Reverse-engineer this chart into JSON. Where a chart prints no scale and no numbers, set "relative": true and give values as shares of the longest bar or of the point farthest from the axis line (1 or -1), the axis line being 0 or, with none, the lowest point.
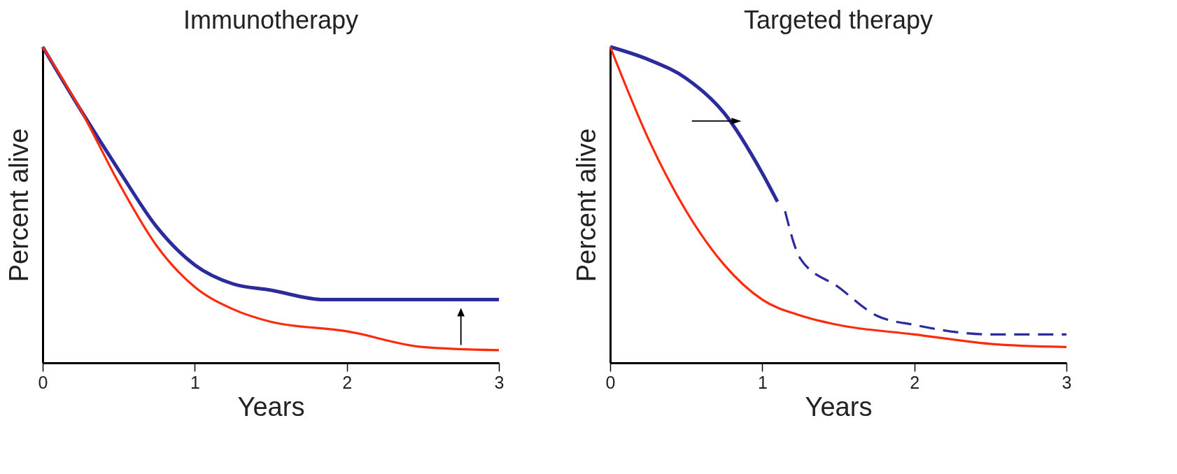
{
  "chart_data": [
    {
      "type": "line",
      "title": "Immunotherapy",
      "xlabel": "Years",
      "ylabel": "Percent alive",
      "relative": true,
      "xlim": [
        0,
        3
      ],
      "xticks": [
        0,
        1,
        2,
        3
      ],
      "tick_labels": "x",
      "legend": false,
      "grid": false,
      "marker": "none",
      "series": [
        {
          "color": "#2b2b9c",
          "line_style": "solid",
          "x": [
            0,
            0.25,
            0.5,
            0.75,
            1,
            1.25,
            1.5,
            1.85,
            2,
            3
          ],
          "values": [
            1,
            0.8,
            0.61,
            0.43,
            0.31,
            0.25,
            0.23,
            0.2,
            0.2,
            0.2
          ]
        },
        {
          "color": "#ff2a0a",
          "line_style": "solid",
          "x": [
            0,
            0.25,
            0.5,
            0.75,
            1,
            1.25,
            1.5,
            2,
            2.5,
            3
          ],
          "values": [
            1,
            0.8,
            0.57,
            0.37,
            0.24,
            0.17,
            0.13,
            0.1,
            0.05,
            0.04
          ]
        }
      ]
    },
    {
      "type": "line",
      "title": "Targeted therapy",
      "xlabel": "Years",
      "ylabel": "Percent alive",
      "relative": true,
      "xlim": [
        0,
        3
      ],
      "xticks": [
        0,
        1,
        2,
        3
      ],
      "tick_labels": "x",
      "legend": false,
      "grid": false,
      "marker": "none",
      "series": [
        {
          "color": "#2b2b9c",
          "line_style": "solid",
          "x": [
            0,
            0.25,
            0.5,
            0.75,
            1,
            1.1
          ],
          "values": [
            1,
            0.96,
            0.9,
            0.79,
            0.6,
            0.51
          ]
        },
        {
          "color": "#2b2b9c",
          "line_style": "dashed",
          "x": [
            1.15,
            1.25,
            1.5,
            1.75,
            2,
            2.5,
            3
          ],
          "values": [
            0.48,
            0.33,
            0.24,
            0.15,
            0.12,
            0.09,
            0.09
          ]
        },
        {
          "color": "#ff2a0a",
          "line_style": "solid",
          "x": [
            0,
            0.25,
            0.5,
            0.75,
            1,
            1.25,
            1.5,
            2,
            2.5,
            3
          ],
          "values": [
            1,
            0.71,
            0.48,
            0.31,
            0.2,
            0.15,
            0.12,
            0.09,
            0.06,
            0.05
          ]
        }
      ]
    }
  ]
}
